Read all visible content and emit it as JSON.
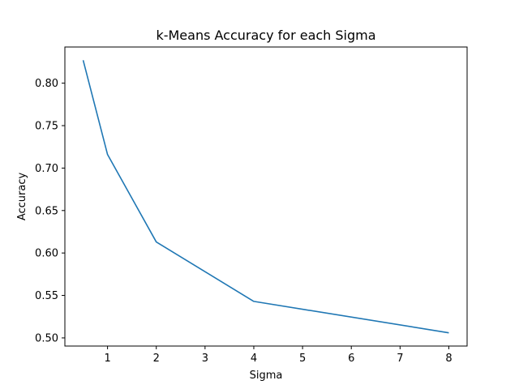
{
  "chart_data": {
    "type": "line",
    "title": "k-Means Accuracy for each Sigma",
    "xlabel": "Sigma",
    "ylabel": "Accuracy",
    "xlim": [
      0.125,
      8.375
    ],
    "ylim": [
      0.4904,
      0.8426
    ],
    "xticks": [
      1,
      2,
      3,
      4,
      5,
      6,
      7,
      8
    ],
    "yticks": [
      0.5,
      0.55,
      0.6,
      0.65,
      0.7,
      0.75,
      0.8
    ],
    "grid": false,
    "series": [
      {
        "color": "#1f77b4",
        "x": [
          0.5,
          1,
          2,
          4,
          8
        ],
        "y": [
          0.827,
          0.716,
          0.613,
          0.543,
          0.506
        ]
      }
    ]
  }
}
